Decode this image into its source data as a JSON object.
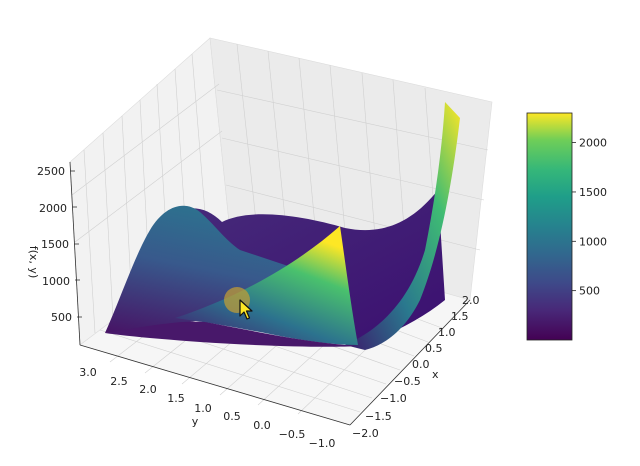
{
  "chart_data": {
    "type": "surface",
    "zlabel": "f(x, y)",
    "xlabel": "x",
    "ylabel": "y",
    "x_ticks": [
      "−2.0",
      "−1.5",
      "−1.0",
      "−0.5",
      "0.0",
      "0.5",
      "1.0",
      "1.5",
      "2.0"
    ],
    "y_ticks": [
      "−1.0",
      "−0.5",
      "0.0",
      "0.5",
      "1.0",
      "1.5",
      "2.0",
      "2.5",
      "3.0"
    ],
    "z_ticks": [
      "500",
      "1000",
      "1500",
      "2000",
      "2500"
    ],
    "xlim": [
      -2,
      2
    ],
    "ylim": [
      -1,
      3
    ],
    "zlim": [
      0,
      2500
    ],
    "colormap": "viridis",
    "colorbar": {
      "ticks": [
        "500",
        "1000",
        "1500",
        "2000"
      ],
      "tick_values": [
        500,
        1000,
        1500,
        2000
      ],
      "range": [
        0,
        2300
      ]
    },
    "highlight_point": {
      "color": "#c8a030"
    }
  },
  "cursor": {
    "icon": "arrow-cursor-icon"
  }
}
